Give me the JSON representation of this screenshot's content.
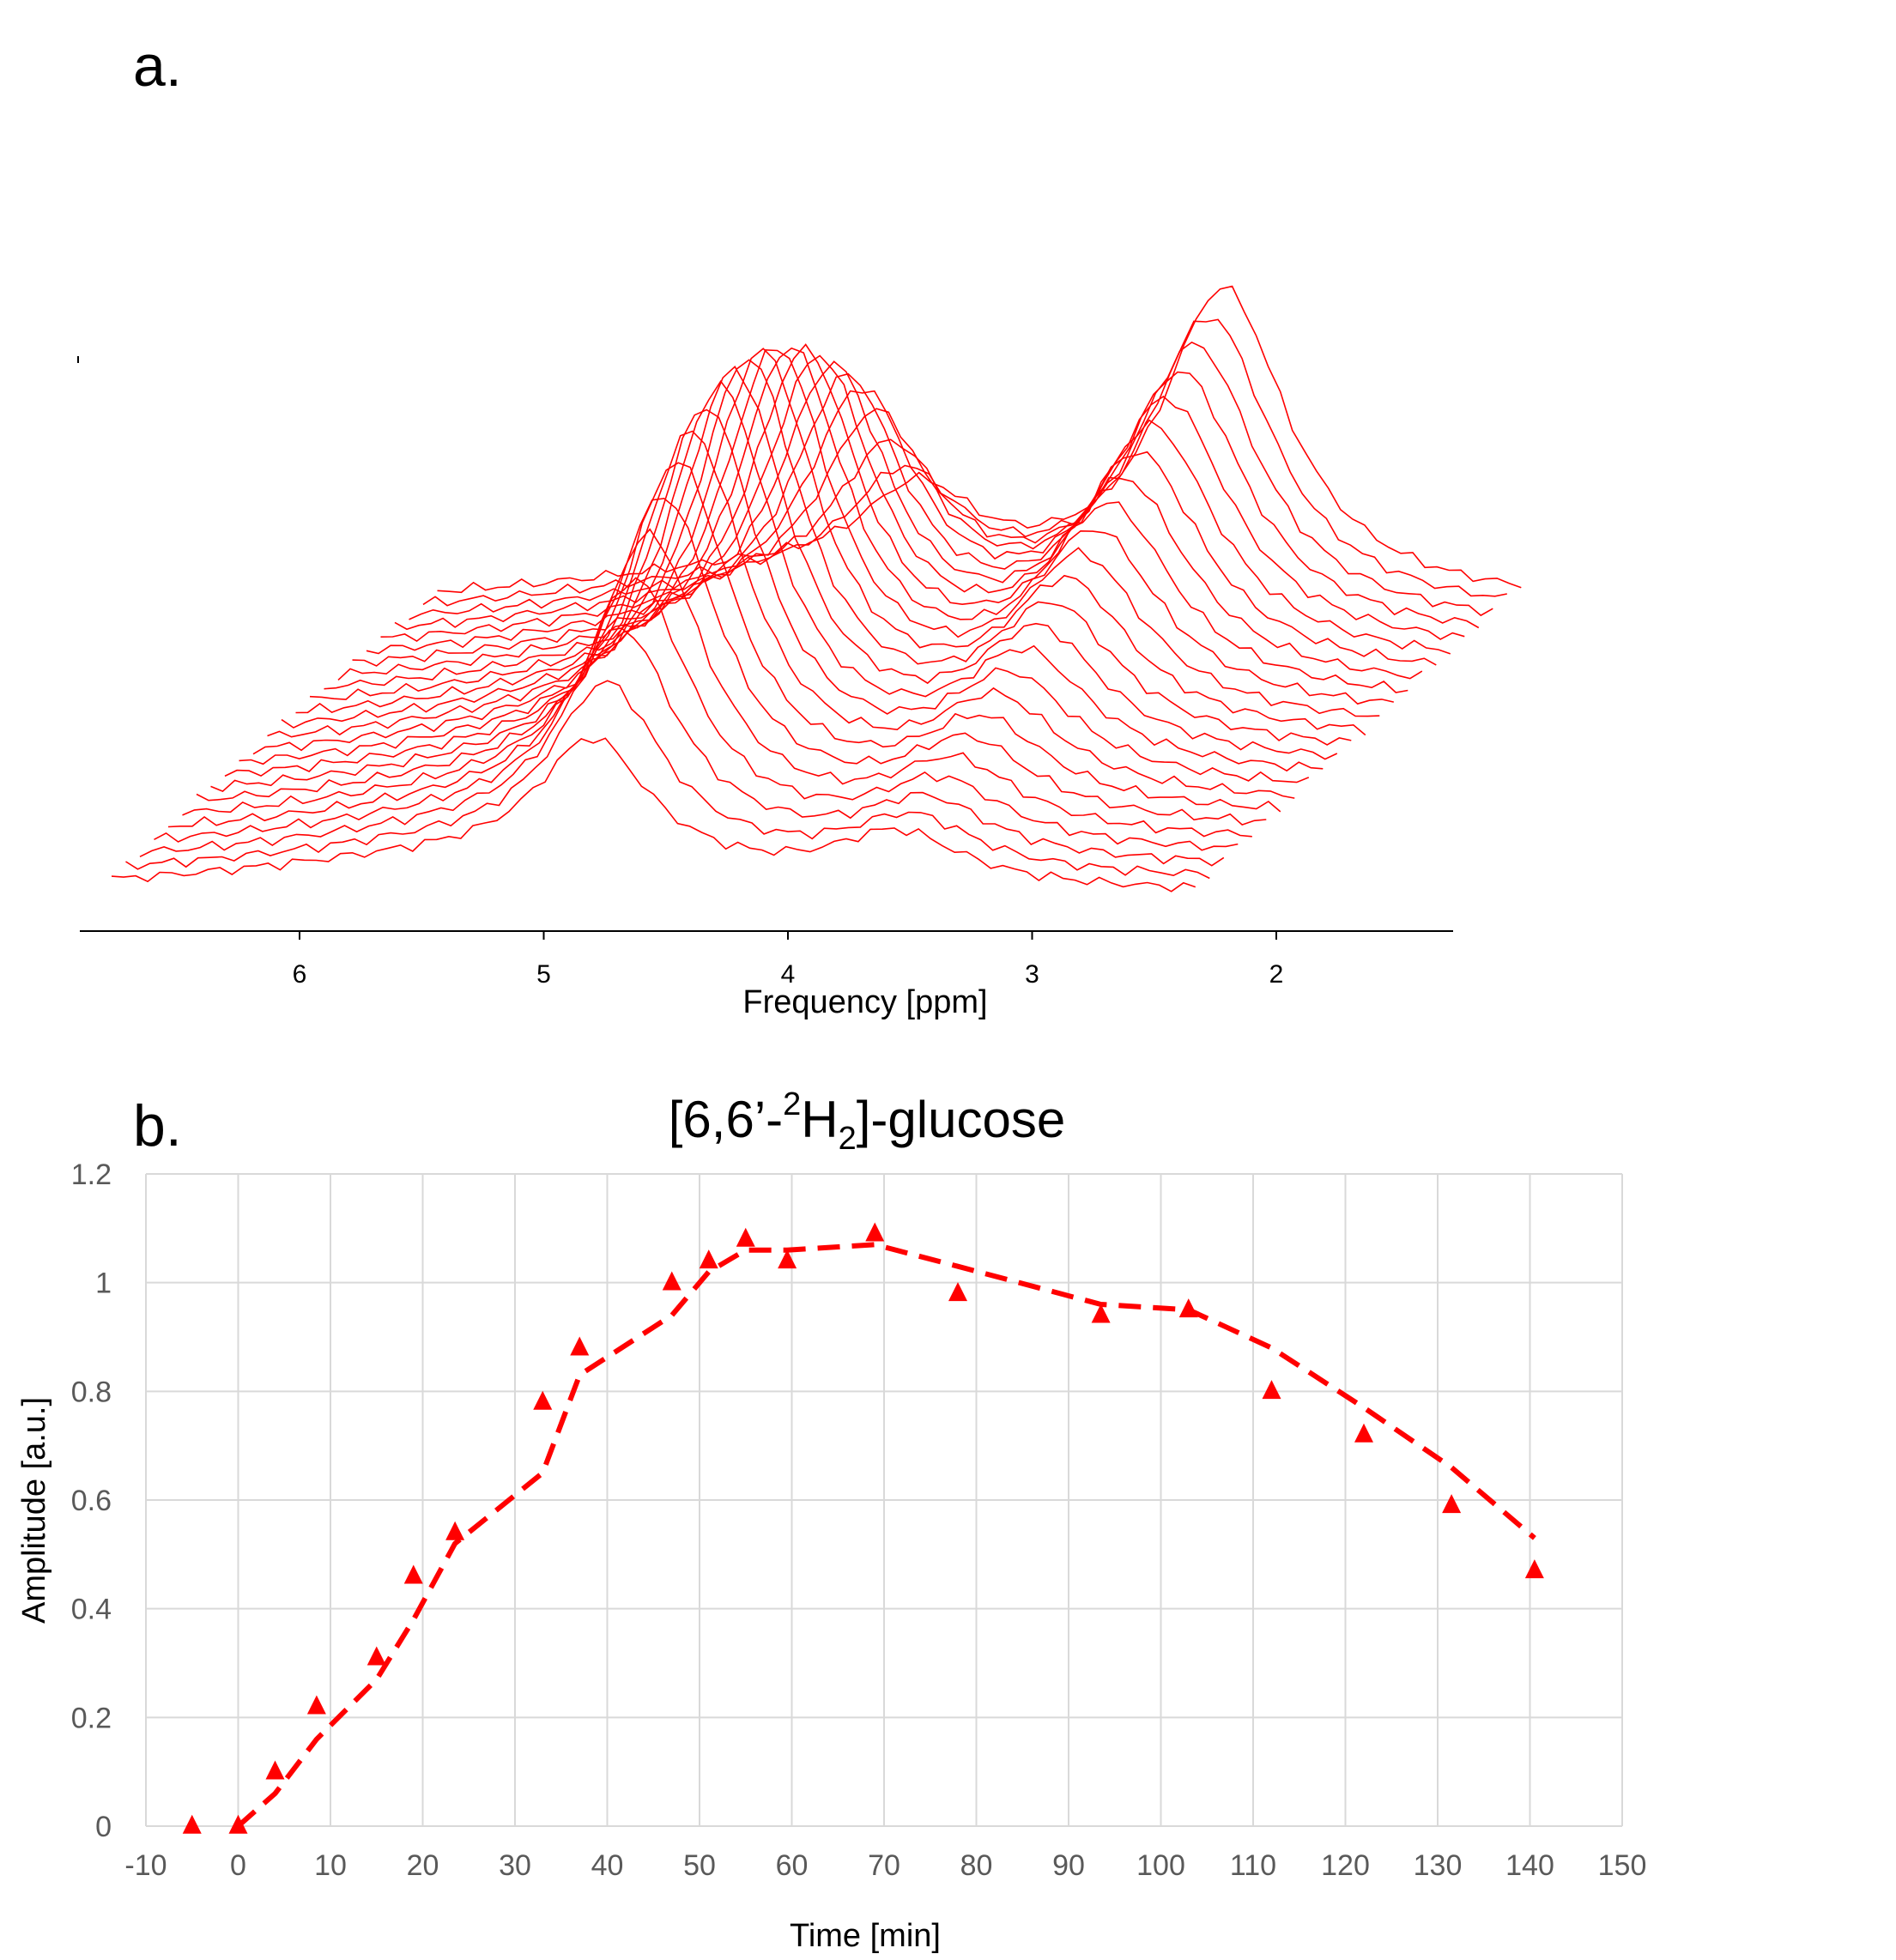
{
  "colors": {
    "series": "#ff0000",
    "axis": "#000000",
    "grid": "#d9d9d9",
    "tick_text": "#595959"
  },
  "chart_data": [
    {
      "panel_label": "a.",
      "type": "line",
      "title": "",
      "xlabel": "Frequency [ppm]",
      "ylabel": "",
      "x_reversed": true,
      "xlim": [
        6.9,
        1.3
      ],
      "x_ticks": [
        6,
        5,
        4,
        3,
        2
      ],
      "stacked_spectra": 24,
      "legend": "none",
      "grid": false
    },
    {
      "panel_label": "b.",
      "type": "scatter",
      "title": "[6,6’-",
      "title_sup": "2",
      "title_mid": "H",
      "title_sub": "2",
      "title_end": "]-glucose",
      "xlabel": "Time [min]",
      "ylabel": "Amplitude [a.u.]",
      "xlim": [
        -10,
        150
      ],
      "ylim": [
        0,
        1.2
      ],
      "x_ticks": [
        -10,
        0,
        10,
        20,
        30,
        40,
        50,
        60,
        70,
        80,
        90,
        100,
        110,
        120,
        130,
        140,
        150
      ],
      "y_ticks": [
        0,
        0.2,
        0.4,
        0.6,
        0.8,
        1,
        1.2
      ],
      "grid": true,
      "legend": "none",
      "series": [
        {
          "marker": "triangle",
          "x": [
            -5,
            0,
            4,
            8.5,
            15,
            19,
            23.5,
            33,
            37,
            47,
            51,
            55,
            59.5,
            69,
            78,
            93.5,
            103,
            112,
            122,
            131.5,
            140.5
          ],
          "y": [
            0.0,
            0.0,
            0.1,
            0.22,
            0.31,
            0.46,
            0.54,
            0.78,
            0.88,
            1.0,
            1.04,
            1.08,
            1.04,
            1.09,
            0.98,
            0.94,
            0.95,
            0.8,
            0.72,
            0.59,
            0.47
          ]
        },
        {
          "line": "dashed",
          "x": [
            0,
            4,
            8.5,
            15,
            19,
            23.5,
            33,
            37,
            47,
            51,
            55,
            59.5,
            69,
            78,
            93.5,
            103,
            112,
            122,
            131.5,
            140.5
          ],
          "y": [
            0.0,
            0.06,
            0.16,
            0.27,
            0.38,
            0.52,
            0.65,
            0.83,
            0.94,
            1.02,
            1.06,
            1.06,
            1.07,
            1.03,
            0.96,
            0.95,
            0.88,
            0.77,
            0.66,
            0.53
          ]
        }
      ]
    }
  ]
}
